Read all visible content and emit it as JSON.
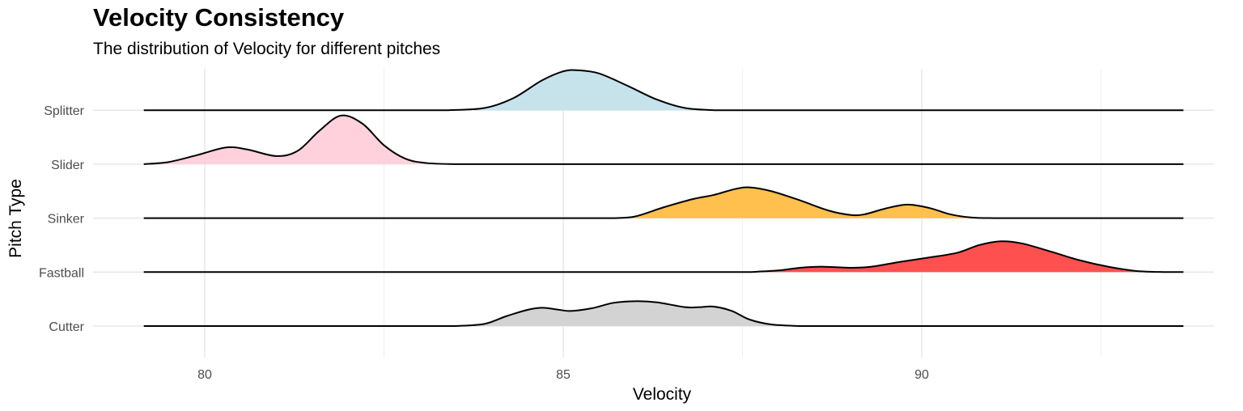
{
  "chart_data": {
    "type": "ridgeline",
    "title": "Velocity Consistency",
    "subtitle": "The distribution of Velocity for different pitches",
    "xlabel": "Velocity",
    "ylabel": "Pitch Type",
    "xlim": [
      78.4,
      94.2
    ],
    "x_ticks": [
      "80",
      "85",
      "90"
    ],
    "grid": true,
    "curve_range": [
      79.15,
      93.65
    ],
    "height_unit": "row spacing",
    "series": [
      {
        "name": "Cutter",
        "color": "#d3d3d3",
        "points": [
          [
            83.5,
            0
          ],
          [
            83.9,
            0.04
          ],
          [
            84.2,
            0.18
          ],
          [
            84.5,
            0.3
          ],
          [
            84.7,
            0.34
          ],
          [
            84.9,
            0.31
          ],
          [
            85.1,
            0.28
          ],
          [
            85.4,
            0.33
          ],
          [
            85.7,
            0.43
          ],
          [
            86.0,
            0.46
          ],
          [
            86.3,
            0.44
          ],
          [
            86.7,
            0.35
          ],
          [
            86.9,
            0.35
          ],
          [
            87.1,
            0.36
          ],
          [
            87.35,
            0.28
          ],
          [
            87.6,
            0.12
          ],
          [
            87.9,
            0.03
          ],
          [
            88.3,
            0
          ]
        ]
      },
      {
        "name": "Fastball",
        "color": "#ff5050",
        "points": [
          [
            87.6,
            0
          ],
          [
            88.0,
            0.03
          ],
          [
            88.3,
            0.08
          ],
          [
            88.6,
            0.1
          ],
          [
            89.0,
            0.08
          ],
          [
            89.3,
            0.1
          ],
          [
            89.7,
            0.19
          ],
          [
            90.1,
            0.27
          ],
          [
            90.5,
            0.36
          ],
          [
            90.8,
            0.5
          ],
          [
            91.1,
            0.57
          ],
          [
            91.4,
            0.53
          ],
          [
            91.8,
            0.38
          ],
          [
            92.2,
            0.22
          ],
          [
            92.6,
            0.1
          ],
          [
            93.0,
            0.02
          ],
          [
            93.4,
            0
          ]
        ]
      },
      {
        "name": "Sinker",
        "color": "#ffc04d",
        "points": [
          [
            85.7,
            0
          ],
          [
            86.0,
            0.03
          ],
          [
            86.4,
            0.2
          ],
          [
            86.8,
            0.35
          ],
          [
            87.1,
            0.43
          ],
          [
            87.4,
            0.54
          ],
          [
            87.6,
            0.57
          ],
          [
            87.9,
            0.5
          ],
          [
            88.3,
            0.33
          ],
          [
            88.7,
            0.14
          ],
          [
            89.0,
            0.06
          ],
          [
            89.2,
            0.07
          ],
          [
            89.5,
            0.18
          ],
          [
            89.8,
            0.25
          ],
          [
            90.1,
            0.19
          ],
          [
            90.4,
            0.07
          ],
          [
            90.7,
            0.01
          ],
          [
            91.0,
            0
          ]
        ]
      },
      {
        "name": "Slider",
        "color": "#ffd1dc",
        "points": [
          [
            79.15,
            0
          ],
          [
            79.5,
            0.04
          ],
          [
            79.9,
            0.17
          ],
          [
            80.3,
            0.31
          ],
          [
            80.6,
            0.27
          ],
          [
            81.0,
            0.15
          ],
          [
            81.3,
            0.25
          ],
          [
            81.6,
            0.62
          ],
          [
            81.9,
            0.9
          ],
          [
            82.2,
            0.75
          ],
          [
            82.5,
            0.35
          ],
          [
            82.8,
            0.1
          ],
          [
            83.1,
            0.02
          ],
          [
            83.5,
            0
          ]
        ]
      },
      {
        "name": "Splitter",
        "color": "#c6e3ec",
        "points": [
          [
            83.4,
            0
          ],
          [
            83.9,
            0.04
          ],
          [
            84.3,
            0.22
          ],
          [
            84.7,
            0.55
          ],
          [
            85.0,
            0.72
          ],
          [
            85.2,
            0.74
          ],
          [
            85.5,
            0.68
          ],
          [
            85.9,
            0.45
          ],
          [
            86.3,
            0.2
          ],
          [
            86.7,
            0.04
          ],
          [
            87.1,
            0
          ]
        ]
      }
    ]
  }
}
